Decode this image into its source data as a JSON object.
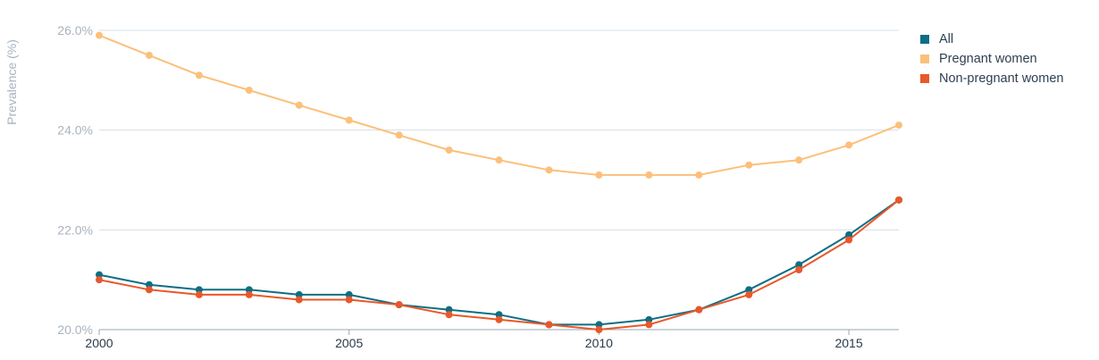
{
  "chart_data": {
    "type": "line",
    "x": [
      2000,
      2001,
      2002,
      2003,
      2004,
      2005,
      2006,
      2007,
      2008,
      2009,
      2010,
      2011,
      2012,
      2013,
      2014,
      2015,
      2016
    ],
    "series": [
      {
        "name": "Pregnant women",
        "color": "#fbc07a",
        "values": [
          25.9,
          25.5,
          25.1,
          24.8,
          24.5,
          24.2,
          23.9,
          23.6,
          23.4,
          23.2,
          23.1,
          23.1,
          23.1,
          23.3,
          23.4,
          23.7,
          24.1
        ]
      },
      {
        "name": "All",
        "color": "#0e6e85",
        "values": [
          21.1,
          20.9,
          20.8,
          20.8,
          20.7,
          20.7,
          20.5,
          20.4,
          20.3,
          20.1,
          20.1,
          20.2,
          20.4,
          20.8,
          21.3,
          21.9,
          22.6
        ]
      },
      {
        "name": "Non-pregnant women",
        "color": "#e8582a",
        "values": [
          21.0,
          20.8,
          20.7,
          20.7,
          20.6,
          20.6,
          20.5,
          20.3,
          20.2,
          20.1,
          20.0,
          20.1,
          20.4,
          20.7,
          21.2,
          21.8,
          22.6
        ]
      }
    ],
    "legend_order": [
      "All",
      "Pregnant women",
      "Non-pregnant women"
    ],
    "ylabel": "Prevalence (%)",
    "xlabel": "",
    "ylim": [
      20,
      26
    ],
    "xlim": [
      2000,
      2016
    ],
    "y_ticks": [
      {
        "value": 20,
        "label": "20.0%"
      },
      {
        "value": 22,
        "label": "22.0%"
      },
      {
        "value": 24,
        "label": "24.0%"
      },
      {
        "value": 26,
        "label": "26.0%"
      }
    ],
    "x_ticks": [
      {
        "value": 2000,
        "label": "2000"
      },
      {
        "value": 2005,
        "label": "2005"
      },
      {
        "value": 2010,
        "label": "2010"
      },
      {
        "value": 2015,
        "label": "2015"
      }
    ],
    "grid": "horizontal",
    "legend_position": "top-right"
  },
  "legend": {
    "items": [
      {
        "label": "All",
        "color": "#0e6e85"
      },
      {
        "label": "Pregnant women",
        "color": "#fbc07a"
      },
      {
        "label": "Non-pregnant women",
        "color": "#e8582a"
      }
    ]
  }
}
